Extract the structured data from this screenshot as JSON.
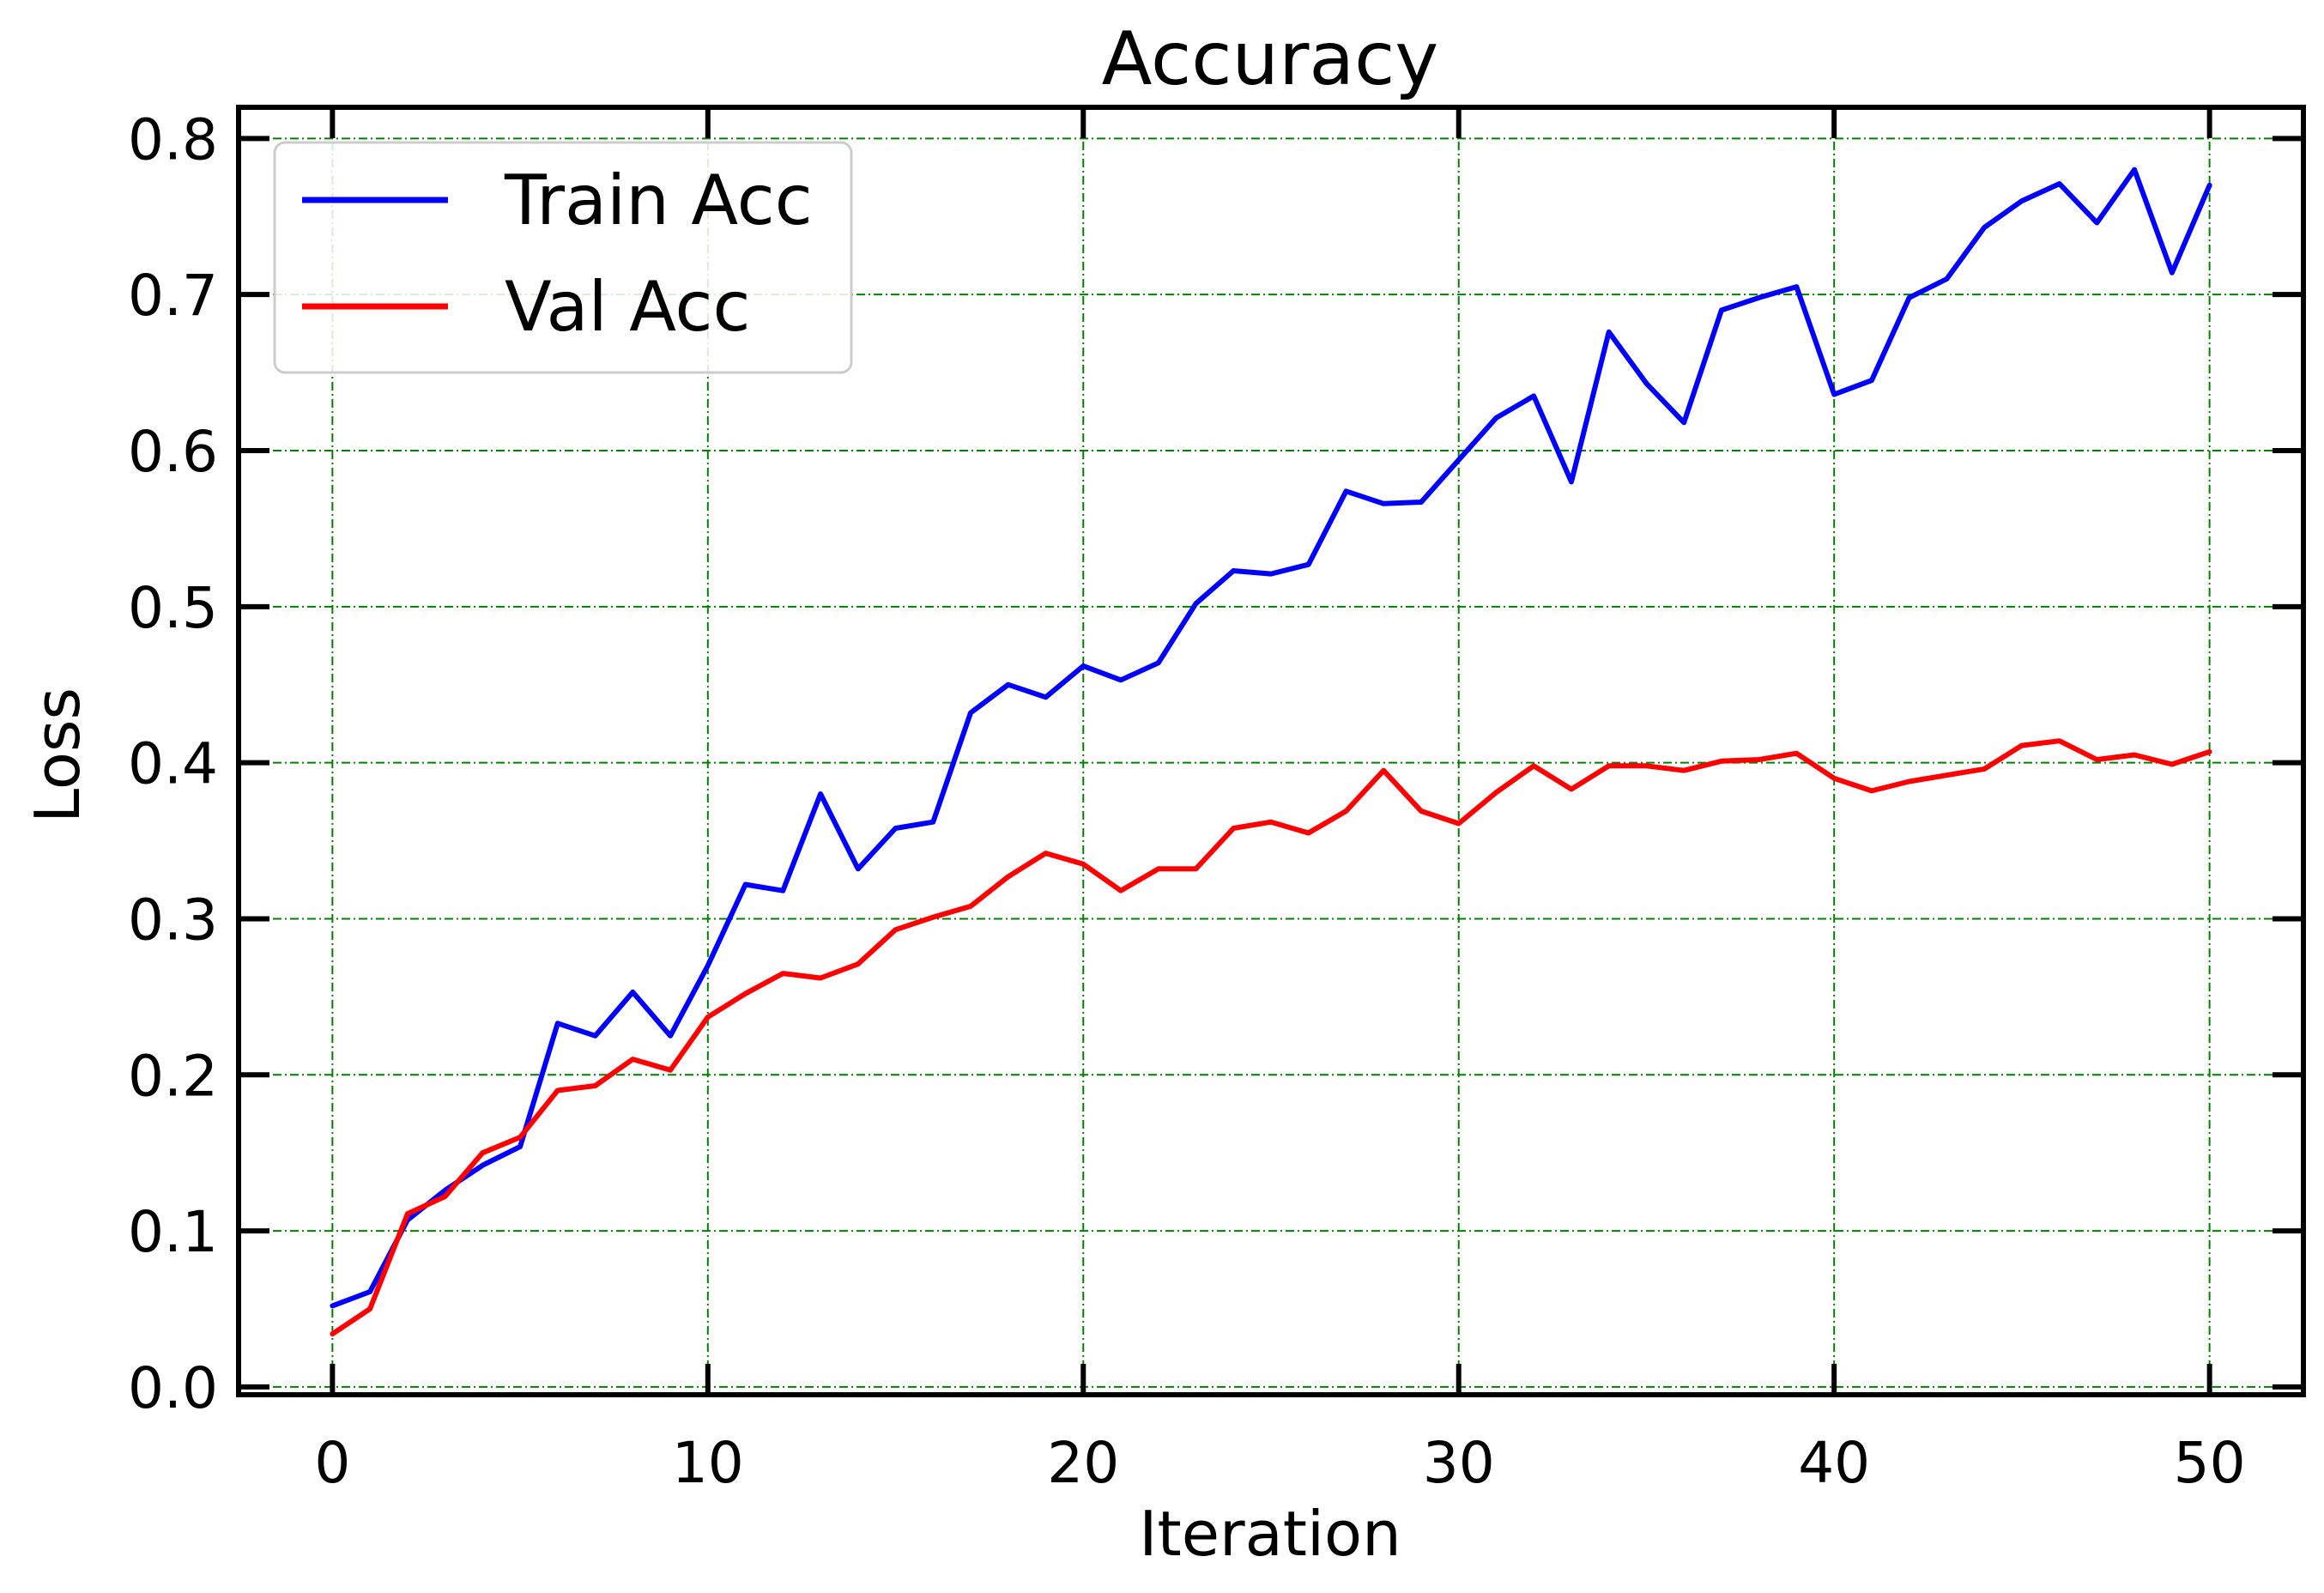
{
  "chart_data": {
    "type": "line",
    "title": "Accuracy",
    "xlabel": "Iteration",
    "ylabel": "Loss",
    "xlim": [
      -2.5,
      52.5
    ],
    "ylim": [
      -0.005,
      0.82
    ],
    "xticks": [
      0,
      10,
      20,
      30,
      40,
      50
    ],
    "yticks": [
      0.0,
      0.1,
      0.2,
      0.3,
      0.4,
      0.5,
      0.6,
      0.7,
      0.8
    ],
    "xtick_labels": [
      "0",
      "10",
      "20",
      "30",
      "40",
      "50"
    ],
    "ytick_labels": [
      "0.0",
      "0.1",
      "0.2",
      "0.3",
      "0.4",
      "0.5",
      "0.6",
      "0.7",
      "0.8"
    ],
    "grid": true,
    "legend_position": "top-left",
    "x": [
      0,
      1,
      2,
      3,
      4,
      5,
      6,
      7,
      8,
      9,
      10,
      11,
      12,
      13,
      14,
      15,
      16,
      17,
      18,
      19,
      20,
      21,
      22,
      23,
      24,
      25,
      26,
      27,
      28,
      29,
      30,
      31,
      32,
      33,
      34,
      35,
      36,
      37,
      38,
      39,
      40,
      41,
      42,
      43,
      44,
      45,
      46,
      47,
      48,
      49,
      50
    ],
    "series": [
      {
        "name": "Train Acc",
        "color": "#0000ff",
        "values": [
          0.052,
          0.061,
          0.107,
          0.126,
          0.142,
          0.154,
          0.233,
          0.225,
          0.253,
          0.225,
          0.27,
          0.322,
          0.318,
          0.38,
          0.332,
          0.358,
          0.362,
          0.432,
          0.45,
          0.442,
          0.462,
          0.453,
          0.464,
          0.502,
          0.523,
          0.521,
          0.527,
          0.574,
          0.566,
          0.567,
          0.594,
          0.621,
          0.635,
          0.58,
          0.676,
          0.643,
          0.618,
          0.69,
          0.698,
          0.705,
          0.636,
          0.645,
          0.698,
          0.71,
          0.743,
          0.76,
          0.771,
          0.746,
          0.78,
          0.714,
          0.77
        ]
      },
      {
        "name": "Val Acc",
        "color": "#ff0000",
        "values": [
          0.034,
          0.05,
          0.111,
          0.122,
          0.15,
          0.16,
          0.19,
          0.193,
          0.21,
          0.203,
          0.237,
          0.252,
          0.265,
          0.262,
          0.271,
          0.293,
          0.301,
          0.308,
          0.327,
          0.342,
          0.335,
          0.318,
          0.332,
          0.332,
          0.358,
          0.362,
          0.355,
          0.369,
          0.395,
          0.369,
          0.361,
          0.381,
          0.398,
          0.383,
          0.398,
          0.398,
          0.395,
          0.401,
          0.402,
          0.406,
          0.39,
          0.382,
          0.388,
          0.392,
          0.396,
          0.411,
          0.414,
          0.402,
          0.405,
          0.399,
          0.407
        ]
      }
    ]
  }
}
